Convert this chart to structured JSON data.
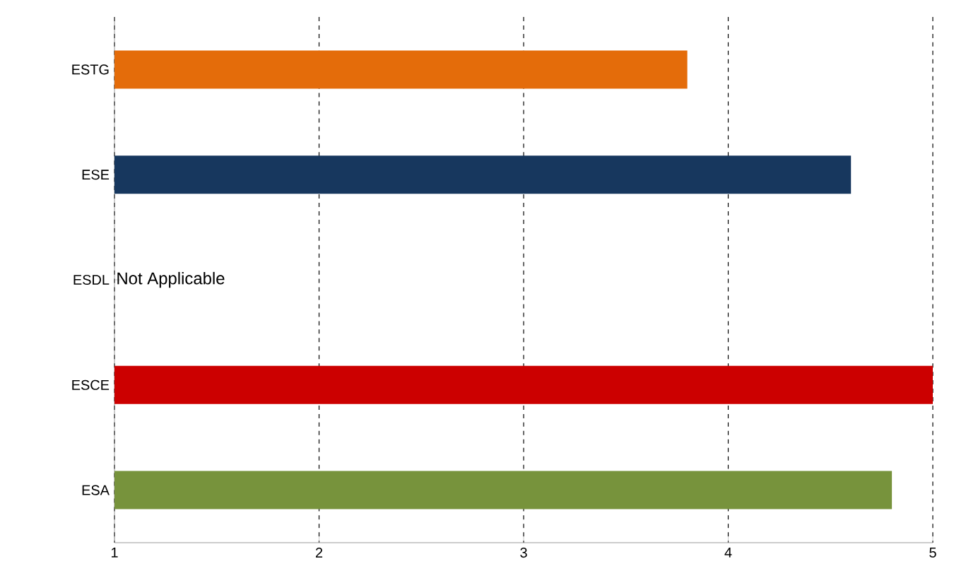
{
  "chart_data": {
    "type": "bar",
    "orientation": "horizontal",
    "categories": [
      "ESTG",
      "ESE",
      "ESDL",
      "ESCE",
      "ESA"
    ],
    "values": [
      3.8,
      4.6,
      null,
      5,
      4.8
    ],
    "colors": [
      "#e46c0a",
      "#17375e",
      "#000000",
      "#cc0000",
      "#77933c"
    ],
    "xlim": [
      1,
      5
    ],
    "xticks": [
      1,
      2,
      3,
      4,
      5
    ],
    "grid": "x",
    "annotations": [
      "Not Applicable"
    ]
  }
}
